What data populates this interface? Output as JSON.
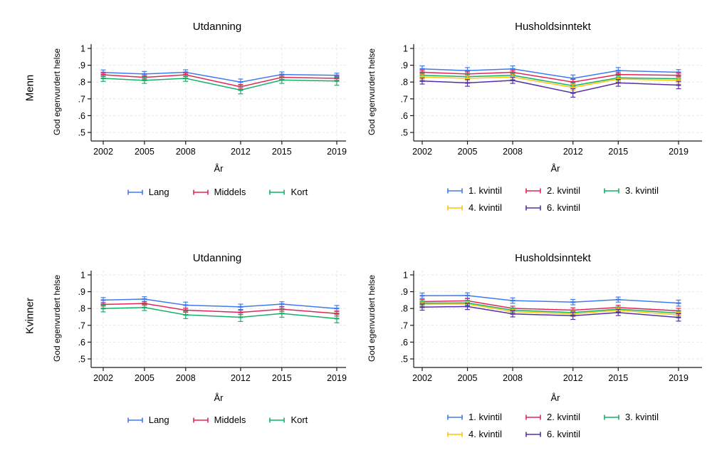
{
  "figure": {
    "row_labels": [
      "Menn",
      "Kvinner"
    ],
    "ylabel": "God egenvurdert helse",
    "xlabel": "År",
    "background": "#FFFFFF",
    "axis_color": "#1A1A1A",
    "grid_color": "#E6E6E6"
  },
  "palette": {
    "blue": "#3E7BF0",
    "red": "#E02757",
    "green": "#15B167",
    "yellow": "#FFC40C",
    "purple": "#5430A8"
  },
  "chart_data": [
    {
      "panel": "Menn",
      "title": "Utdanning",
      "type": "line",
      "x": [
        2002,
        2005,
        2008,
        2012,
        2015,
        2019
      ],
      "xlabel": "År",
      "ylabel": "God egenvurdert helse",
      "ylim": [
        0.45,
        1.02
      ],
      "yticks": [
        1,
        0.9,
        0.8,
        0.7,
        0.6,
        0.5
      ],
      "ytick_labels": [
        "1",
        ".9",
        ".8",
        ".7",
        ".6",
        ".5"
      ],
      "grid": true,
      "legend_position": "bottom",
      "series": [
        {
          "name": "Lang",
          "color": "#3E7BF0",
          "values": [
            0.857,
            0.848,
            0.858,
            0.8,
            0.845,
            0.84
          ],
          "ci": [
            0.015,
            0.015,
            0.015,
            0.018,
            0.015,
            0.013
          ]
        },
        {
          "name": "Middels",
          "color": "#E02757",
          "values": [
            0.843,
            0.828,
            0.843,
            0.772,
            0.828,
            0.822
          ],
          "ci": [
            0.01,
            0.01,
            0.01,
            0.013,
            0.012,
            0.012
          ]
        },
        {
          "name": "Kort",
          "color": "#15B167",
          "values": [
            0.822,
            0.81,
            0.822,
            0.752,
            0.812,
            0.806
          ],
          "ci": [
            0.018,
            0.018,
            0.018,
            0.022,
            0.02,
            0.025
          ]
        }
      ]
    },
    {
      "panel": "Menn",
      "title": "Husholdsinntekt",
      "type": "line",
      "x": [
        2002,
        2005,
        2008,
        2012,
        2015,
        2019
      ],
      "xlabel": "År",
      "ylabel": "God egenvurdert helse",
      "ylim": [
        0.45,
        1.02
      ],
      "yticks": [
        1,
        0.9,
        0.8,
        0.7,
        0.6,
        0.5
      ],
      "ytick_labels": [
        "1",
        ".9",
        ".8",
        ".7",
        ".6",
        ".5"
      ],
      "grid": true,
      "legend_position": "bottom",
      "series": [
        {
          "name": "1. kvintil",
          "color": "#3E7BF0",
          "values": [
            0.878,
            0.868,
            0.878,
            0.822,
            0.868,
            0.858
          ],
          "ci": [
            0.018,
            0.018,
            0.018,
            0.02,
            0.018,
            0.016
          ]
        },
        {
          "name": "2. kvintil",
          "color": "#E02757",
          "values": [
            0.858,
            0.848,
            0.858,
            0.8,
            0.845,
            0.84
          ],
          "ci": [
            0.012,
            0.012,
            0.012,
            0.015,
            0.013,
            0.013
          ]
        },
        {
          "name": "3. kvintil",
          "color": "#15B167",
          "values": [
            0.84,
            0.832,
            0.84,
            0.778,
            0.825,
            0.82
          ],
          "ci": [
            0.012,
            0.012,
            0.012,
            0.015,
            0.013,
            0.013
          ]
        },
        {
          "name": "4. kvintil",
          "color": "#FFC40C",
          "values": [
            0.83,
            0.822,
            0.83,
            0.768,
            0.818,
            0.81
          ],
          "ci": [
            0.013,
            0.013,
            0.013,
            0.016,
            0.014,
            0.014
          ]
        },
        {
          "name": "6. kvintil",
          "color": "#5430A8",
          "values": [
            0.806,
            0.795,
            0.81,
            0.735,
            0.795,
            0.782
          ],
          "ci": [
            0.018,
            0.02,
            0.018,
            0.025,
            0.02,
            0.022
          ]
        }
      ]
    },
    {
      "panel": "Kvinner",
      "title": "Utdanning",
      "type": "line",
      "x": [
        2002,
        2005,
        2008,
        2012,
        2015,
        2019
      ],
      "xlabel": "År",
      "ylabel": "God egenvurdert helse",
      "ylim": [
        0.45,
        1.02
      ],
      "yticks": [
        1,
        0.9,
        0.8,
        0.7,
        0.6,
        0.5
      ],
      "ytick_labels": [
        "1",
        ".9",
        ".8",
        ".7",
        ".6",
        ".5"
      ],
      "grid": true,
      "legend_position": "bottom",
      "series": [
        {
          "name": "Lang",
          "color": "#3E7BF0",
          "values": [
            0.85,
            0.856,
            0.82,
            0.81,
            0.826,
            0.8
          ],
          "ci": [
            0.015,
            0.014,
            0.018,
            0.016,
            0.014,
            0.018
          ]
        },
        {
          "name": "Middels",
          "color": "#E02757",
          "values": [
            0.824,
            0.83,
            0.79,
            0.777,
            0.796,
            0.77
          ],
          "ci": [
            0.01,
            0.01,
            0.012,
            0.013,
            0.013,
            0.015
          ]
        },
        {
          "name": "Kort",
          "color": "#15B167",
          "values": [
            0.8,
            0.806,
            0.762,
            0.748,
            0.77,
            0.74
          ],
          "ci": [
            0.02,
            0.018,
            0.022,
            0.025,
            0.022,
            0.025
          ]
        }
      ]
    },
    {
      "panel": "Kvinner",
      "title": "Husholdsinntekt",
      "type": "line",
      "x": [
        2002,
        2005,
        2008,
        2012,
        2015,
        2019
      ],
      "xlabel": "År",
      "ylabel": "God egenvurdert helse",
      "ylim": [
        0.45,
        1.02
      ],
      "yticks": [
        1,
        0.9,
        0.8,
        0.7,
        0.6,
        0.5
      ],
      "ytick_labels": [
        "1",
        ".9",
        ".8",
        ".7",
        ".6",
        ".5"
      ],
      "grid": true,
      "legend_position": "bottom",
      "series": [
        {
          "name": "1. kvintil",
          "color": "#3E7BF0",
          "values": [
            0.876,
            0.877,
            0.847,
            0.838,
            0.853,
            0.832
          ],
          "ci": [
            0.016,
            0.016,
            0.016,
            0.016,
            0.015,
            0.018
          ]
        },
        {
          "name": "2. kvintil",
          "color": "#E02757",
          "values": [
            0.841,
            0.846,
            0.801,
            0.79,
            0.806,
            0.786
          ],
          "ci": [
            0.013,
            0.013,
            0.013,
            0.014,
            0.013,
            0.015
          ]
        },
        {
          "name": "3. kvintil",
          "color": "#15B167",
          "values": [
            0.832,
            0.833,
            0.79,
            0.776,
            0.796,
            0.773
          ],
          "ci": [
            0.013,
            0.013,
            0.013,
            0.014,
            0.013,
            0.015
          ]
        },
        {
          "name": "4. kvintil",
          "color": "#FFC40C",
          "values": [
            0.825,
            0.827,
            0.782,
            0.768,
            0.789,
            0.762
          ],
          "ci": [
            0.014,
            0.014,
            0.014,
            0.015,
            0.014,
            0.016
          ]
        },
        {
          "name": "6. kvintil",
          "color": "#5430A8",
          "values": [
            0.808,
            0.812,
            0.768,
            0.757,
            0.776,
            0.747
          ],
          "ci": [
            0.018,
            0.018,
            0.018,
            0.022,
            0.018,
            0.022
          ]
        }
      ]
    }
  ]
}
